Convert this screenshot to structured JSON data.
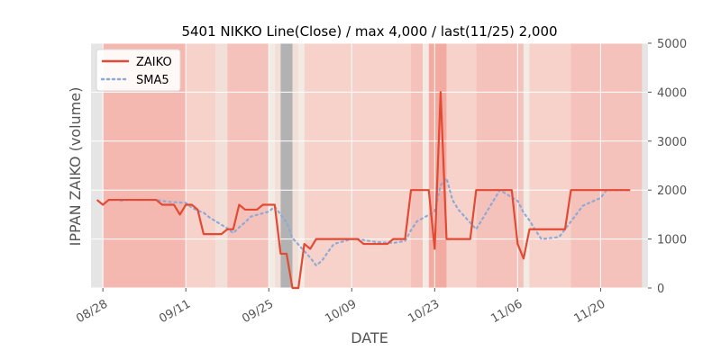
{
  "chart_data": {
    "type": "line",
    "title": "5401 NIKKO Line(Close) / max 4,000 / last(11/25) 2,000",
    "xlabel": "DATE",
    "ylabel": "IPPAN ZAIKO (volume)",
    "ylim": [
      0,
      5000
    ],
    "yticks": [
      0,
      1000,
      2000,
      3000,
      4000,
      5000
    ],
    "ytick_labels": [
      "0",
      "1000",
      "2000",
      "3000",
      "4000",
      "5000"
    ],
    "xlim": [
      "2023-08-26",
      "2023-11-28"
    ],
    "xticks": [
      "2023-08-28",
      "2023-09-11",
      "2023-09-25",
      "2023-10-09",
      "2023-10-23",
      "2023-11-06",
      "2023-11-20"
    ],
    "xtick_labels": [
      "08/28",
      "09/11",
      "09/25",
      "10/09",
      "10/23",
      "11/06",
      "11/20"
    ],
    "grid": true,
    "legend": "top-left",
    "series": [
      {
        "name": "ZAIKO",
        "color": "#e24a33",
        "style": "solid",
        "x": [
          "2023-08-27",
          "2023-08-28",
          "2023-08-29",
          "2023-08-30",
          "2023-08-31",
          "2023-09-01",
          "2023-09-02",
          "2023-09-03",
          "2023-09-04",
          "2023-09-05",
          "2023-09-06",
          "2023-09-07",
          "2023-09-08",
          "2023-09-09",
          "2023-09-10",
          "2023-09-11",
          "2023-09-12",
          "2023-09-13",
          "2023-09-14",
          "2023-09-15",
          "2023-09-16",
          "2023-09-17",
          "2023-09-18",
          "2023-09-19",
          "2023-09-20",
          "2023-09-21",
          "2023-09-22",
          "2023-09-23",
          "2023-09-24",
          "2023-09-25",
          "2023-09-26",
          "2023-09-27",
          "2023-09-28",
          "2023-09-29",
          "2023-09-30",
          "2023-10-01",
          "2023-10-02",
          "2023-10-03",
          "2023-10-04",
          "2023-10-05",
          "2023-10-06",
          "2023-10-07",
          "2023-10-08",
          "2023-10-09",
          "2023-10-10",
          "2023-10-11",
          "2023-10-12",
          "2023-10-13",
          "2023-10-14",
          "2023-10-15",
          "2023-10-16",
          "2023-10-17",
          "2023-10-18",
          "2023-10-19",
          "2023-10-22",
          "2023-10-23",
          "2023-10-24",
          "2023-10-25",
          "2023-10-26",
          "2023-10-27",
          "2023-10-28",
          "2023-10-29",
          "2023-10-30",
          "2023-10-31",
          "2023-11-01",
          "2023-11-02",
          "2023-11-03",
          "2023-11-04",
          "2023-11-05",
          "2023-11-06",
          "2023-11-07",
          "2023-11-08",
          "2023-11-09",
          "2023-11-10",
          "2023-11-11",
          "2023-11-12",
          "2023-11-13",
          "2023-11-14",
          "2023-11-15",
          "2023-11-16",
          "2023-11-17",
          "2023-11-18",
          "2023-11-19",
          "2023-11-20",
          "2023-11-21",
          "2023-11-22",
          "2023-11-23",
          "2023-11-24",
          "2023-11-25"
        ],
        "values": [
          1800,
          1700,
          1800,
          1800,
          1800,
          1800,
          1800,
          1800,
          1800,
          1800,
          1800,
          1700,
          1700,
          1700,
          1500,
          1700,
          1700,
          1600,
          1100,
          1100,
          1100,
          1100,
          1200,
          1200,
          1700,
          1600,
          1600,
          1600,
          1700,
          1700,
          1700,
          700,
          700,
          0,
          0,
          900,
          800,
          1000,
          1000,
          1000,
          1000,
          1000,
          1000,
          1000,
          1000,
          900,
          900,
          900,
          900,
          900,
          1000,
          1000,
          1000,
          2000,
          2000,
          800,
          4000,
          1000,
          1000,
          1000,
          1000,
          1000,
          2000,
          2000,
          2000,
          2000,
          2000,
          2000,
          2000,
          900,
          600,
          1200,
          1200,
          1200,
          1200,
          1200,
          1200,
          1200,
          2000,
          2000,
          2000,
          2000,
          2000,
          2000,
          2000,
          2000,
          2000,
          2000,
          2000
        ]
      },
      {
        "name": "SMA5",
        "color": "#8eaad4",
        "style": "dotted",
        "x": [
          "2023-08-31",
          "2023-09-01",
          "2023-09-04",
          "2023-09-05",
          "2023-09-06",
          "2023-09-07",
          "2023-09-08",
          "2023-09-11",
          "2023-09-12",
          "2023-09-13",
          "2023-09-14",
          "2023-09-15",
          "2023-09-18",
          "2023-09-19",
          "2023-09-20",
          "2023-09-21",
          "2023-09-22",
          "2023-09-25",
          "2023-09-26",
          "2023-09-27",
          "2023-09-28",
          "2023-09-29",
          "2023-10-02",
          "2023-10-03",
          "2023-10-04",
          "2023-10-05",
          "2023-10-06",
          "2023-10-09",
          "2023-10-10",
          "2023-10-11",
          "2023-10-12",
          "2023-10-13",
          "2023-10-16",
          "2023-10-17",
          "2023-10-18",
          "2023-10-19",
          "2023-10-20",
          "2023-10-23",
          "2023-10-24",
          "2023-10-25",
          "2023-10-26",
          "2023-10-27",
          "2023-10-30",
          "2023-10-31",
          "2023-11-01",
          "2023-11-02",
          "2023-11-03",
          "2023-11-06",
          "2023-11-07",
          "2023-11-08",
          "2023-11-09",
          "2023-11-10",
          "2023-11-13",
          "2023-11-14",
          "2023-11-15",
          "2023-11-16",
          "2023-11-17",
          "2023-11-20",
          "2023-11-21",
          "2023-11-22",
          "2023-11-24",
          "2023-11-25"
        ],
        "values": [
          1780,
          1800,
          1800,
          1800,
          1800,
          1780,
          1760,
          1740,
          1640,
          1580,
          1540,
          1440,
          1220,
          1120,
          1240,
          1340,
          1460,
          1560,
          1660,
          1500,
          1340,
          1020,
          620,
          460,
          560,
          740,
          900,
          1000,
          1000,
          980,
          960,
          940,
          920,
          940,
          960,
          1180,
          1360,
          1560,
          2100,
          2240,
          1800,
          1600,
          1200,
          1400,
          1600,
          1800,
          2000,
          1780,
          1540,
          1380,
          1180,
          1000,
          1040,
          1200,
          1360,
          1520,
          1680,
          1840,
          2000,
          2000,
          2000,
          2000
        ]
      }
    ],
    "bands": [
      {
        "from": "2023-08-26",
        "to": "2023-08-28",
        "color": "#e5e5e5"
      },
      {
        "from": "2023-08-28",
        "to": "2023-09-11",
        "color": "#f4b8b0"
      },
      {
        "from": "2023-09-11",
        "to": "2023-09-16",
        "color": "#f6d2cb"
      },
      {
        "from": "2023-09-16",
        "to": "2023-09-18",
        "color": "#f1dfd8"
      },
      {
        "from": "2023-09-18",
        "to": "2023-09-25",
        "color": "#f4c2ba"
      },
      {
        "from": "2023-09-25",
        "to": "2023-09-26",
        "color": "#f2ebe3"
      },
      {
        "from": "2023-09-26",
        "to": "2023-09-27",
        "color": "#f1dfd8"
      },
      {
        "from": "2023-09-27",
        "to": "2023-09-29",
        "color": "#b2b2b2"
      },
      {
        "from": "2023-09-29",
        "to": "2023-09-30",
        "color": "#f1dfd8"
      },
      {
        "from": "2023-09-30",
        "to": "2023-10-01",
        "color": "#f2ebe3"
      },
      {
        "from": "2023-10-01",
        "to": "2023-10-19",
        "color": "#f6d2cb"
      },
      {
        "from": "2023-10-19",
        "to": "2023-10-21",
        "color": "#f4c2ba"
      },
      {
        "from": "2023-10-21",
        "to": "2023-10-22",
        "color": "#f2ebe3"
      },
      {
        "from": "2023-10-22",
        "to": "2023-10-25",
        "color": "#f3aaa0"
      },
      {
        "from": "2023-10-25",
        "to": "2023-10-30",
        "color": "#f6d2cb"
      },
      {
        "from": "2023-10-30",
        "to": "2023-11-07",
        "color": "#f4c2ba"
      },
      {
        "from": "2023-11-07",
        "to": "2023-11-08",
        "color": "#f2ebe3"
      },
      {
        "from": "2023-11-08",
        "to": "2023-11-15",
        "color": "#f6d2cb"
      },
      {
        "from": "2023-11-15",
        "to": "2023-11-27",
        "color": "#f4c2ba"
      },
      {
        "from": "2023-11-27",
        "to": "2023-11-28",
        "color": "#e5e5e5"
      }
    ]
  }
}
